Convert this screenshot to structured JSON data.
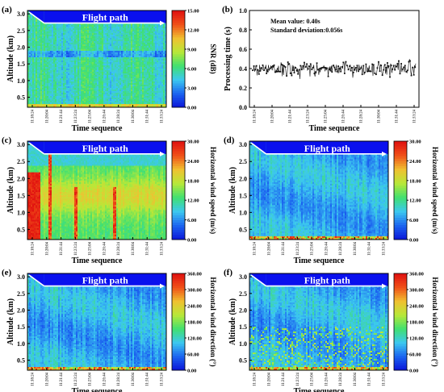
{
  "chart_data": [
    {
      "type": "heatmap",
      "panel_label": "(a)",
      "xlabel": "Time sequence",
      "ylabel": "Altitude (km)",
      "colorbar_label": "SNR (dB)",
      "annotation": "Flight path",
      "ylim": [
        0.2,
        3.1
      ],
      "yticks": [
        0.5,
        1.0,
        1.5,
        2.0,
        2.5,
        3.0
      ],
      "xticks": [
        "11:18:24",
        "11:20:04",
        "11:21:44",
        "11:23:24",
        "11:25:04",
        "11:26:44",
        "11:28:24",
        "11:30:04",
        "11:31:44",
        "11:33:24"
      ],
      "colorbar_ticks": [
        "0.00",
        "3.00",
        "6.00",
        "9.00",
        "12.00",
        "15.00"
      ],
      "crange": [
        0,
        15
      ]
    },
    {
      "type": "line",
      "panel_label": "(b)",
      "xlabel": "Time sequence",
      "ylabel": "Processing time (s)",
      "ylim": [
        0.0,
        1.0
      ],
      "yticks": [
        "0.0",
        "0.2",
        "0.4",
        "0.6",
        "0.8",
        "1.0"
      ],
      "xticks": [
        "11:18:24",
        "11:20:04",
        "11:21:44",
        "11:23:24",
        "11:25:04",
        "11:26:44",
        "11:28:24",
        "11:30:04",
        "11:31:44",
        "11:33:24"
      ],
      "stats": [
        "Mean value: 0.40s",
        "Standard deviation:0.056s"
      ],
      "mean": 0.4,
      "std": 0.056
    },
    {
      "type": "heatmap",
      "panel_label": "(c)",
      "xlabel": "Time sequence",
      "ylabel": "Altitude (km)",
      "colorbar_label": "Horizontal wind speed (m/s)",
      "annotation": "Flight path",
      "ylim": [
        0.2,
        3.1
      ],
      "yticks": [
        0.5,
        1.0,
        1.5,
        2.0,
        2.5,
        3.0
      ],
      "xticks": [
        "11:18:24",
        "11:20:04",
        "11:21:44",
        "11:23:24",
        "11:25:04",
        "11:26:44",
        "11:28:24",
        "11:30:04",
        "11:31:44",
        "11:33:24"
      ],
      "colorbar_ticks": [
        "0.00",
        "6.00",
        "12.00",
        "18.00",
        "24.00",
        "30.00"
      ],
      "crange": [
        0,
        30
      ]
    },
    {
      "type": "heatmap",
      "panel_label": "(d)",
      "xlabel": "Time sequence",
      "ylabel": "Altitude (km)",
      "colorbar_label": "Horizontal wind speed (m/s)",
      "annotation": "Flight path",
      "ylim": [
        0.2,
        3.1
      ],
      "yticks": [
        0.5,
        1.0,
        1.5,
        2.0,
        2.5,
        3.0
      ],
      "xticks": [
        "11:18:24",
        "11:20:04",
        "11:21:44",
        "11:23:24",
        "11:25:04",
        "11:26:44",
        "11:28:24",
        "11:30:04",
        "11:31:44",
        "11:33:24"
      ],
      "colorbar_ticks": [
        "0.00",
        "6.00",
        "12.00",
        "18.00",
        "24.00",
        "30.00"
      ],
      "crange": [
        0,
        30
      ]
    },
    {
      "type": "heatmap",
      "panel_label": "(e)",
      "xlabel": "Time sequence",
      "ylabel": "Altitude (km)",
      "colorbar_label": "Horizontal wind direction (°)",
      "annotation": "Flight path",
      "ylim": [
        0.2,
        3.1
      ],
      "yticks": [
        0.5,
        1.0,
        1.5,
        2.0,
        2.5,
        3.0
      ],
      "xticks": [
        "11:18:24",
        "11:20:04",
        "11:21:44",
        "11:23:24",
        "11:25:04",
        "11:26:44",
        "11:28:24",
        "11:30:04",
        "11:31:44",
        "11:33:24"
      ],
      "colorbar_ticks": [
        "0.00",
        "60.00",
        "120.00",
        "180.00",
        "240.00",
        "300.00",
        "360.00"
      ],
      "crange": [
        0,
        360
      ]
    },
    {
      "type": "heatmap",
      "panel_label": "(f)",
      "xlabel": "Time sequence",
      "ylabel": "Altitude (km)",
      "colorbar_label": "Horizontal wind direction (°)",
      "annotation": "Flight path",
      "ylim": [
        0.2,
        3.1
      ],
      "yticks": [
        0.5,
        1.0,
        1.5,
        2.0,
        2.5,
        3.0
      ],
      "xticks": [
        "11:18:24",
        "11:20:04",
        "11:21:44",
        "11:23:24",
        "11:25:04",
        "11:26:44",
        "11:28:24",
        "11:30:04",
        "11:31:44",
        "11:33:24"
      ],
      "colorbar_ticks": [
        "0.00",
        "60.00",
        "120.00",
        "180.00",
        "240.00",
        "300.00",
        "360.00"
      ],
      "crange": [
        0,
        360
      ]
    }
  ],
  "colors": {
    "flight_band": "#0a10ee",
    "annotation_text": "#ffffff",
    "colorscale": [
      "#0a14d8",
      "#1c64f0",
      "#3cc8f0",
      "#40e070",
      "#b8e838",
      "#f0c030",
      "#f05018",
      "#e01010"
    ],
    "series": "#111111"
  }
}
